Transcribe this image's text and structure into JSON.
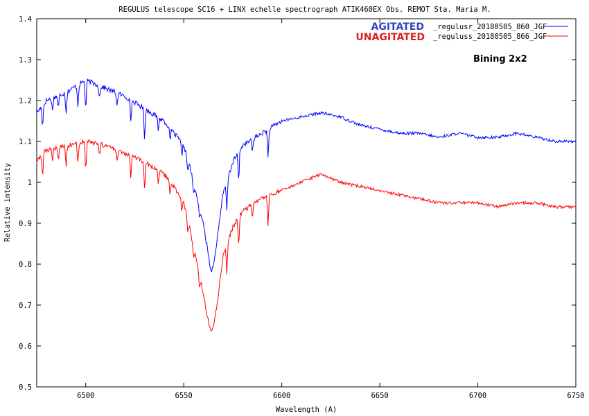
{
  "chart_data": {
    "type": "line",
    "title": "REGULUS  telescope SC16 + LINX   echelle spectrograph  ATIK460EX Obs. REMOT  Sta. Maria M.",
    "xlabel": "Wavelength (A)",
    "ylabel": "Relative intensity",
    "xlim": [
      6475,
      6750
    ],
    "ylim": [
      0.5,
      1.4
    ],
    "x_ticks": [
      6500,
      6550,
      6600,
      6650,
      6700,
      6750
    ],
    "y_ticks": [
      0.5,
      0.6,
      0.7,
      0.8,
      0.9,
      1,
      1.1,
      1.2,
      1.3,
      1.4
    ],
    "grid": false,
    "legend_position": "top-right",
    "annotation": "Bining 2x2",
    "absorption_lines": [
      6478,
      6483,
      6486,
      6490,
      6496,
      6500,
      6507,
      6516,
      6523,
      6530,
      6537,
      6543,
      6549,
      6552,
      6555,
      6558,
      6572,
      6578,
      6585,
      6593
    ],
    "series": [
      {
        "name": "_regulusr_20180505_860_JGF",
        "tag": "AGITATED",
        "color": "#0000ff",
        "x": [
          6475,
          6480,
          6490,
          6500,
          6510,
          6520,
          6530,
          6540,
          6545,
          6550,
          6553,
          6556,
          6559,
          6561,
          6563,
          6564,
          6566,
          6568,
          6570,
          6575,
          6580,
          6590,
          6600,
          6610,
          6620,
          6630,
          6640,
          6650,
          6660,
          6670,
          6680,
          6690,
          6700,
          6710,
          6720,
          6730,
          6740,
          6750
        ],
        "y": [
          1.17,
          1.2,
          1.22,
          1.25,
          1.23,
          1.21,
          1.18,
          1.15,
          1.12,
          1.09,
          1.04,
          0.98,
          0.92,
          0.87,
          0.81,
          0.78,
          0.82,
          0.9,
          0.97,
          1.05,
          1.09,
          1.12,
          1.15,
          1.16,
          1.17,
          1.16,
          1.14,
          1.13,
          1.12,
          1.12,
          1.11,
          1.12,
          1.11,
          1.11,
          1.12,
          1.11,
          1.1,
          1.1
        ]
      },
      {
        "name": "_reguluss_20180505_866_JGF",
        "tag": "UNAGITATED",
        "color": "#ff0000",
        "x": [
          6475,
          6480,
          6490,
          6500,
          6510,
          6520,
          6530,
          6540,
          6545,
          6550,
          6553,
          6556,
          6559,
          6561,
          6563,
          6564,
          6566,
          6568,
          6570,
          6575,
          6580,
          6590,
          6600,
          6610,
          6620,
          6630,
          6640,
          6650,
          6660,
          6670,
          6680,
          6690,
          6700,
          6710,
          6720,
          6730,
          6740,
          6750
        ],
        "y": [
          1.05,
          1.08,
          1.09,
          1.1,
          1.09,
          1.07,
          1.05,
          1.02,
          0.99,
          0.95,
          0.89,
          0.82,
          0.75,
          0.7,
          0.65,
          0.63,
          0.67,
          0.74,
          0.82,
          0.89,
          0.93,
          0.96,
          0.98,
          1.0,
          1.02,
          1.0,
          0.99,
          0.98,
          0.97,
          0.96,
          0.95,
          0.95,
          0.95,
          0.94,
          0.95,
          0.95,
          0.94,
          0.94
        ]
      }
    ]
  }
}
